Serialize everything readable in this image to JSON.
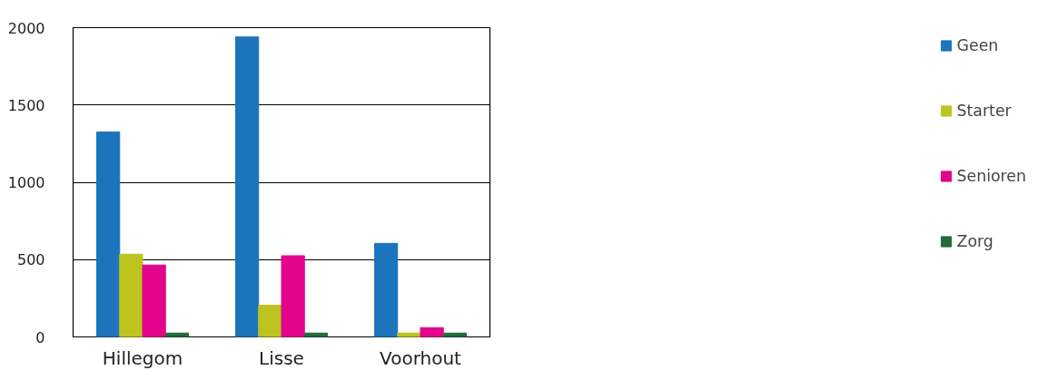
{
  "chart_data": {
    "type": "bar",
    "categories": [
      "Hillegom",
      "Lisse",
      "Voorhout"
    ],
    "series": [
      {
        "name": "Geen",
        "color": "#1c75bc",
        "values": [
          1325,
          1940,
          605
        ]
      },
      {
        "name": "Starter",
        "color": "#bdc31f",
        "values": [
          535,
          205,
          25
        ]
      },
      {
        "name": "Senioren",
        "color": "#e2058c",
        "values": [
          465,
          525,
          60
        ]
      },
      {
        "name": "Zorg",
        "color": "#226b3a",
        "values": [
          25,
          25,
          25
        ]
      }
    ],
    "ylim": [
      0,
      2000
    ],
    "yticks": [
      0,
      500,
      1000,
      1500,
      2000
    ],
    "grid": "y",
    "legend": "right"
  }
}
